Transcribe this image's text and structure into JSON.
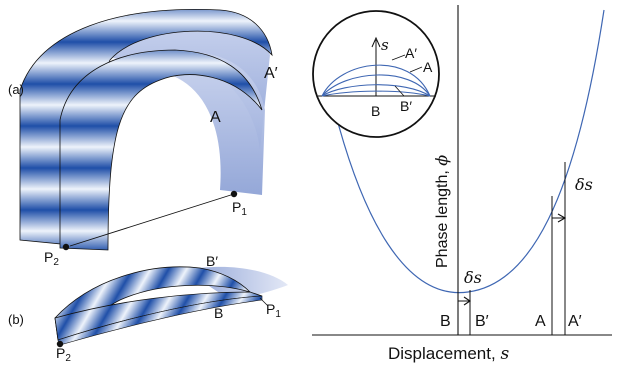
{
  "colors": {
    "band_dark": "#1f4fa8",
    "band_light": "#eef3fb",
    "back_face": "#8fa3d6",
    "back_face_light": "#c9d3ee",
    "curve": "#3f67b3",
    "ink": "#111111"
  },
  "left_panel": {
    "panel_a": {
      "label": "(a)",
      "surface_labels": {
        "outer": "A′",
        "inner": "A"
      },
      "point_labels": {
        "p1": "P",
        "p1_sub": "1",
        "p2": "P",
        "p2_sub": "2"
      }
    },
    "panel_b": {
      "label": "(b)",
      "surface_labels": {
        "upper": "B′",
        "lower": "B"
      },
      "point_labels": {
        "p1": "P",
        "p1_sub": "1",
        "p2": "P",
        "p2_sub": "2"
      }
    }
  },
  "right_panel": {
    "y_axis_label": "Phase length, ",
    "y_axis_symbol": "ϕ",
    "x_axis_label": "Displacement, ",
    "x_axis_symbol": "s",
    "inset": {
      "axis_symbol": "s",
      "curve_labels": {
        "a_prime": "A′",
        "a": "A",
        "b_prime": "B′",
        "b": "B"
      }
    },
    "bottom_labels": {
      "b": "B",
      "b_prime": "B′",
      "a": "A",
      "a_prime": "A′"
    },
    "delta_labels": {
      "near_minimum": "δs",
      "on_branch": "δs"
    }
  }
}
